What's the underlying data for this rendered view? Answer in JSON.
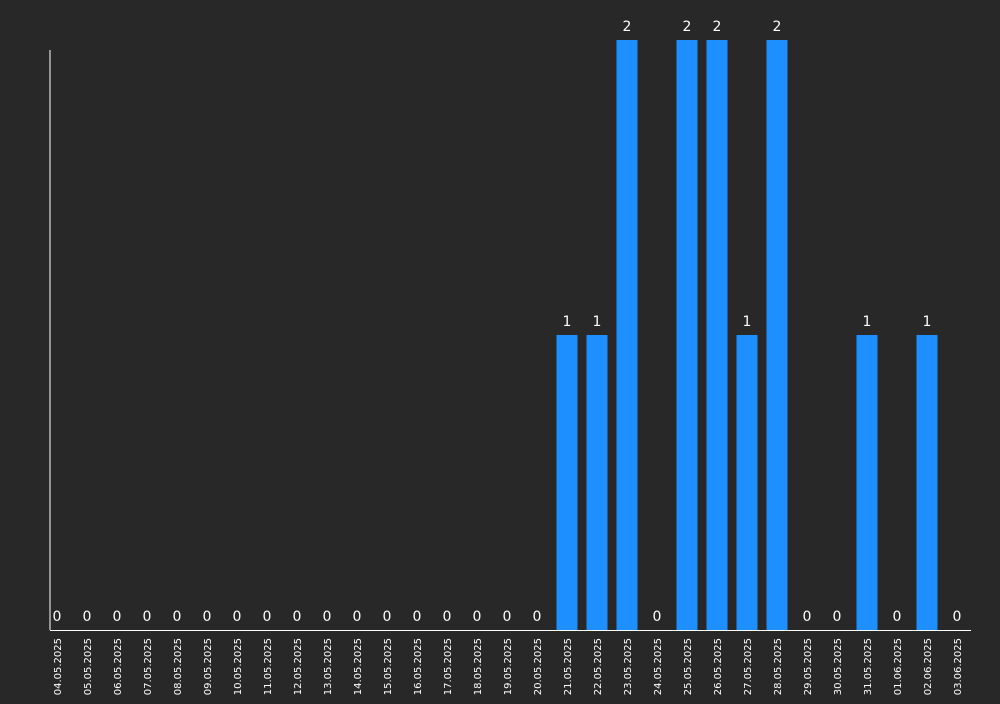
{
  "chart_data": {
    "type": "bar",
    "title": "",
    "xlabel": "",
    "ylabel": "",
    "ylim": [
      0,
      2
    ],
    "grid": false,
    "legend": "none",
    "colors": {
      "background": "#282828",
      "bar": "#1E8FFF",
      "axis": "#FFFFFF",
      "text": "#FFFFFF"
    },
    "categories": [
      "04.05.2025",
      "05.05.2025",
      "06.05.2025",
      "07.05.2025",
      "08.05.2025",
      "09.05.2025",
      "10.05.2025",
      "11.05.2025",
      "12.05.2025",
      "13.05.2025",
      "14.05.2025",
      "15.05.2025",
      "16.05.2025",
      "17.05.2025",
      "18.05.2025",
      "19.05.2025",
      "20.05.2025",
      "21.05.2025",
      "22.05.2025",
      "23.05.2025",
      "24.05.2025",
      "25.05.2025",
      "26.05.2025",
      "27.05.2025",
      "28.05.2025",
      "29.05.2025",
      "30.05.2025",
      "31.05.2025",
      "01.06.2025",
      "02.06.2025",
      "03.06.2025"
    ],
    "values": [
      0,
      0,
      0,
      0,
      0,
      0,
      0,
      0,
      0,
      0,
      0,
      0,
      0,
      0,
      0,
      0,
      0,
      1,
      1,
      2,
      0,
      2,
      2,
      1,
      2,
      0,
      0,
      1,
      0,
      1,
      0
    ]
  }
}
